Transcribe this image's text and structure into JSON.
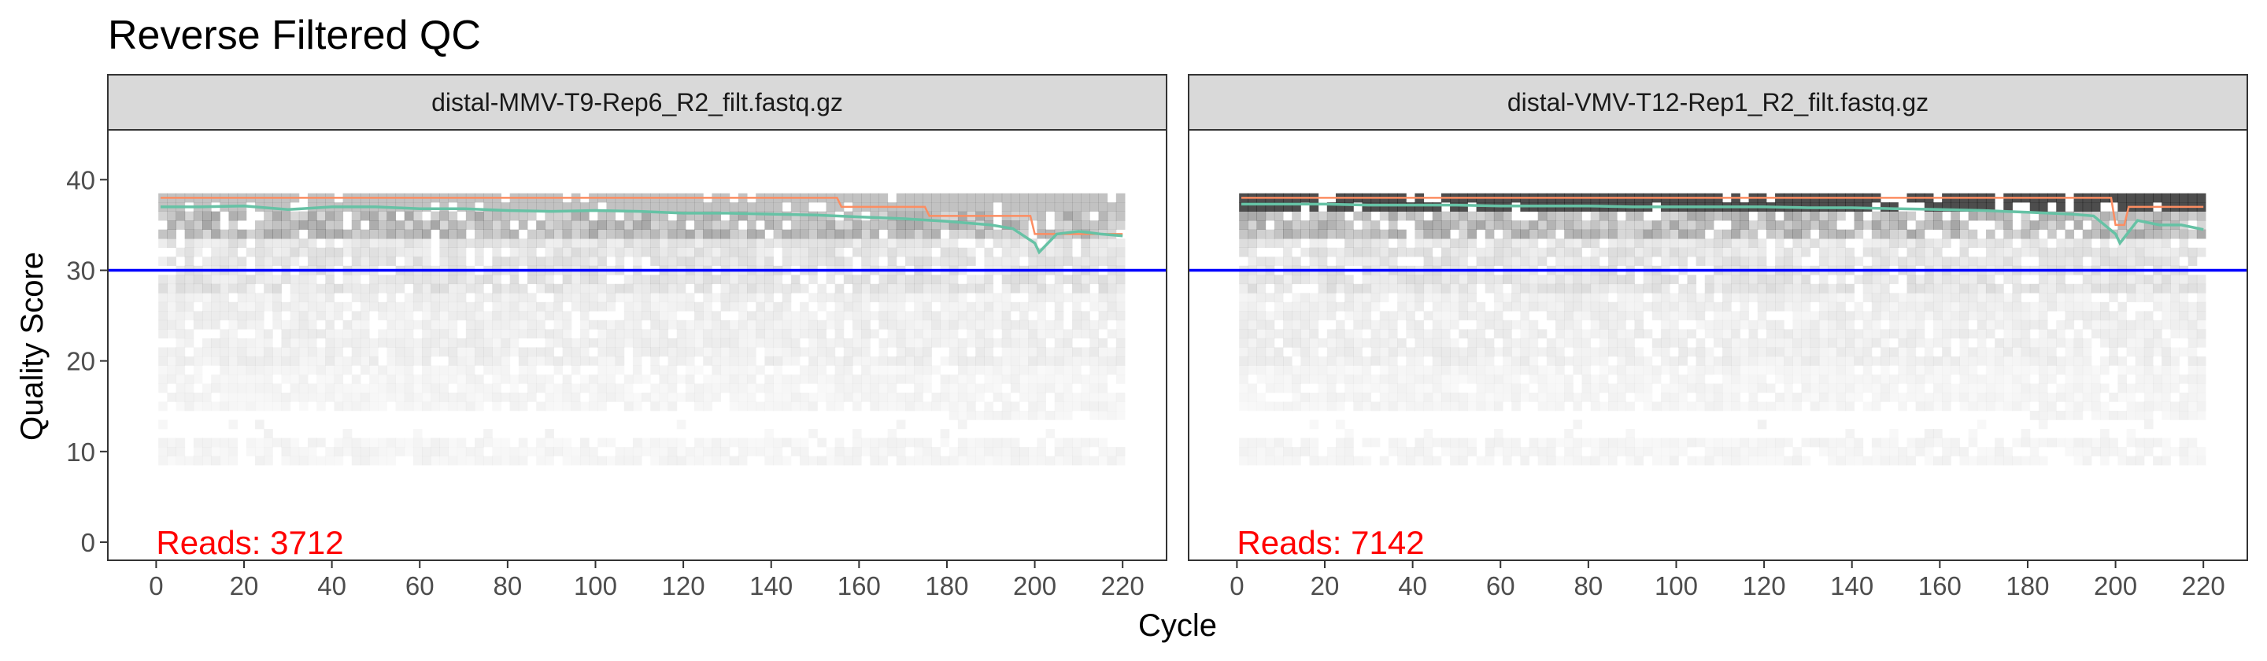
{
  "title": "Reverse Filtered QC",
  "chart_data": {
    "type": "line",
    "xlabel": "Cycle",
    "ylabel": "Quality Score",
    "xlim": [
      -11,
      230
    ],
    "ylim": [
      -2,
      45.5
    ],
    "x_ticks": [
      0,
      20,
      40,
      60,
      80,
      100,
      120,
      140,
      160,
      180,
      200,
      220
    ],
    "y_ticks": [
      0,
      10,
      20,
      30,
      40
    ],
    "threshold_line": {
      "y": 30,
      "color": "#0000ff"
    },
    "grid": false,
    "series_colors": {
      "mean": "#66c2a5",
      "quartile": "#fc8d62"
    },
    "panels": [
      {
        "strip": "distal-MMV-T9-Rep6_R2_filt.fastq.gz",
        "reads_prefix": "Reads:",
        "reads_count": "3712",
        "mean_quality": {
          "x": [
            1,
            10,
            20,
            30,
            40,
            50,
            60,
            70,
            80,
            90,
            100,
            110,
            120,
            130,
            140,
            150,
            160,
            170,
            180,
            190,
            195,
            200,
            201,
            205,
            210,
            215,
            220
          ],
          "y": [
            37.0,
            37.0,
            37.1,
            36.7,
            37.0,
            37.0,
            36.8,
            36.8,
            36.6,
            36.5,
            36.6,
            36.5,
            36.3,
            36.3,
            36.2,
            36.1,
            35.9,
            35.7,
            35.4,
            35.0,
            34.6,
            33.0,
            32.0,
            34.0,
            34.3,
            34.0,
            33.8
          ]
        },
        "median_quality": {
          "x": [
            1,
            155,
            156,
            175,
            176,
            199,
            200,
            205,
            206,
            220
          ],
          "y": [
            38,
            38,
            37,
            37,
            36,
            36,
            34,
            34,
            34,
            34
          ]
        }
      },
      {
        "strip": "distal-VMV-T12-Rep1_R2_filt.fastq.gz",
        "reads_prefix": "Reads:",
        "reads_count": "7142",
        "mean_quality": {
          "x": [
            1,
            10,
            20,
            30,
            40,
            50,
            60,
            70,
            80,
            90,
            100,
            110,
            120,
            130,
            140,
            150,
            160,
            170,
            180,
            190,
            195,
            200,
            201,
            205,
            210,
            215,
            220
          ],
          "y": [
            37.3,
            37.3,
            37.3,
            37.2,
            37.2,
            37.2,
            37.1,
            37.1,
            37.1,
            37.0,
            37.0,
            37.0,
            37.0,
            36.9,
            36.9,
            36.8,
            36.7,
            36.6,
            36.4,
            36.2,
            36.0,
            34.0,
            33.0,
            35.5,
            35.0,
            35.0,
            34.5
          ]
        },
        "median_quality": {
          "x": [
            1,
            199,
            200,
            202,
            203,
            220
          ],
          "y": [
            38,
            38,
            35,
            35,
            37,
            37
          ]
        }
      }
    ]
  }
}
